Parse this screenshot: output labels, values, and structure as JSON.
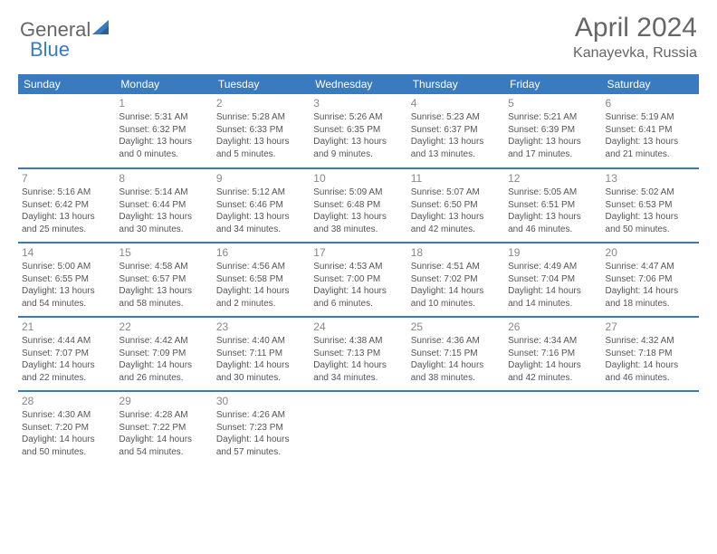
{
  "brand": {
    "part1": "General",
    "part2": "Blue"
  },
  "title": "April 2024",
  "location": "Kanayevka, Russia",
  "colors": {
    "header_bg": "#3a7bbf",
    "header_text": "#ffffff",
    "border": "#3a7bbf",
    "text": "#555555",
    "daynum": "#888888",
    "page_bg": "#ffffff",
    "brand_gray": "#666666",
    "brand_blue": "#3a7bbf"
  },
  "typography": {
    "title_fontsize": 30,
    "location_fontsize": 16,
    "header_fontsize": 12,
    "daynum_fontsize": 12,
    "cell_fontsize": 10
  },
  "weekdays": [
    "Sunday",
    "Monday",
    "Tuesday",
    "Wednesday",
    "Thursday",
    "Friday",
    "Saturday"
  ],
  "weeks": [
    [
      null,
      {
        "n": "1",
        "sr": "5:31 AM",
        "ss": "6:32 PM",
        "dl": "13 hours and 0 minutes."
      },
      {
        "n": "2",
        "sr": "5:28 AM",
        "ss": "6:33 PM",
        "dl": "13 hours and 5 minutes."
      },
      {
        "n": "3",
        "sr": "5:26 AM",
        "ss": "6:35 PM",
        "dl": "13 hours and 9 minutes."
      },
      {
        "n": "4",
        "sr": "5:23 AM",
        "ss": "6:37 PM",
        "dl": "13 hours and 13 minutes."
      },
      {
        "n": "5",
        "sr": "5:21 AM",
        "ss": "6:39 PM",
        "dl": "13 hours and 17 minutes."
      },
      {
        "n": "6",
        "sr": "5:19 AM",
        "ss": "6:41 PM",
        "dl": "13 hours and 21 minutes."
      }
    ],
    [
      {
        "n": "7",
        "sr": "5:16 AM",
        "ss": "6:42 PM",
        "dl": "13 hours and 25 minutes."
      },
      {
        "n": "8",
        "sr": "5:14 AM",
        "ss": "6:44 PM",
        "dl": "13 hours and 30 minutes."
      },
      {
        "n": "9",
        "sr": "5:12 AM",
        "ss": "6:46 PM",
        "dl": "13 hours and 34 minutes."
      },
      {
        "n": "10",
        "sr": "5:09 AM",
        "ss": "6:48 PM",
        "dl": "13 hours and 38 minutes."
      },
      {
        "n": "11",
        "sr": "5:07 AM",
        "ss": "6:50 PM",
        "dl": "13 hours and 42 minutes."
      },
      {
        "n": "12",
        "sr": "5:05 AM",
        "ss": "6:51 PM",
        "dl": "13 hours and 46 minutes."
      },
      {
        "n": "13",
        "sr": "5:02 AM",
        "ss": "6:53 PM",
        "dl": "13 hours and 50 minutes."
      }
    ],
    [
      {
        "n": "14",
        "sr": "5:00 AM",
        "ss": "6:55 PM",
        "dl": "13 hours and 54 minutes."
      },
      {
        "n": "15",
        "sr": "4:58 AM",
        "ss": "6:57 PM",
        "dl": "13 hours and 58 minutes."
      },
      {
        "n": "16",
        "sr": "4:56 AM",
        "ss": "6:58 PM",
        "dl": "14 hours and 2 minutes."
      },
      {
        "n": "17",
        "sr": "4:53 AM",
        "ss": "7:00 PM",
        "dl": "14 hours and 6 minutes."
      },
      {
        "n": "18",
        "sr": "4:51 AM",
        "ss": "7:02 PM",
        "dl": "14 hours and 10 minutes."
      },
      {
        "n": "19",
        "sr": "4:49 AM",
        "ss": "7:04 PM",
        "dl": "14 hours and 14 minutes."
      },
      {
        "n": "20",
        "sr": "4:47 AM",
        "ss": "7:06 PM",
        "dl": "14 hours and 18 minutes."
      }
    ],
    [
      {
        "n": "21",
        "sr": "4:44 AM",
        "ss": "7:07 PM",
        "dl": "14 hours and 22 minutes."
      },
      {
        "n": "22",
        "sr": "4:42 AM",
        "ss": "7:09 PM",
        "dl": "14 hours and 26 minutes."
      },
      {
        "n": "23",
        "sr": "4:40 AM",
        "ss": "7:11 PM",
        "dl": "14 hours and 30 minutes."
      },
      {
        "n": "24",
        "sr": "4:38 AM",
        "ss": "7:13 PM",
        "dl": "14 hours and 34 minutes."
      },
      {
        "n": "25",
        "sr": "4:36 AM",
        "ss": "7:15 PM",
        "dl": "14 hours and 38 minutes."
      },
      {
        "n": "26",
        "sr": "4:34 AM",
        "ss": "7:16 PM",
        "dl": "14 hours and 42 minutes."
      },
      {
        "n": "27",
        "sr": "4:32 AM",
        "ss": "7:18 PM",
        "dl": "14 hours and 46 minutes."
      }
    ],
    [
      {
        "n": "28",
        "sr": "4:30 AM",
        "ss": "7:20 PM",
        "dl": "14 hours and 50 minutes."
      },
      {
        "n": "29",
        "sr": "4:28 AM",
        "ss": "7:22 PM",
        "dl": "14 hours and 54 minutes."
      },
      {
        "n": "30",
        "sr": "4:26 AM",
        "ss": "7:23 PM",
        "dl": "14 hours and 57 minutes."
      },
      null,
      null,
      null,
      null
    ]
  ],
  "labels": {
    "sunrise": "Sunrise:",
    "sunset": "Sunset:",
    "daylight": "Daylight:"
  }
}
